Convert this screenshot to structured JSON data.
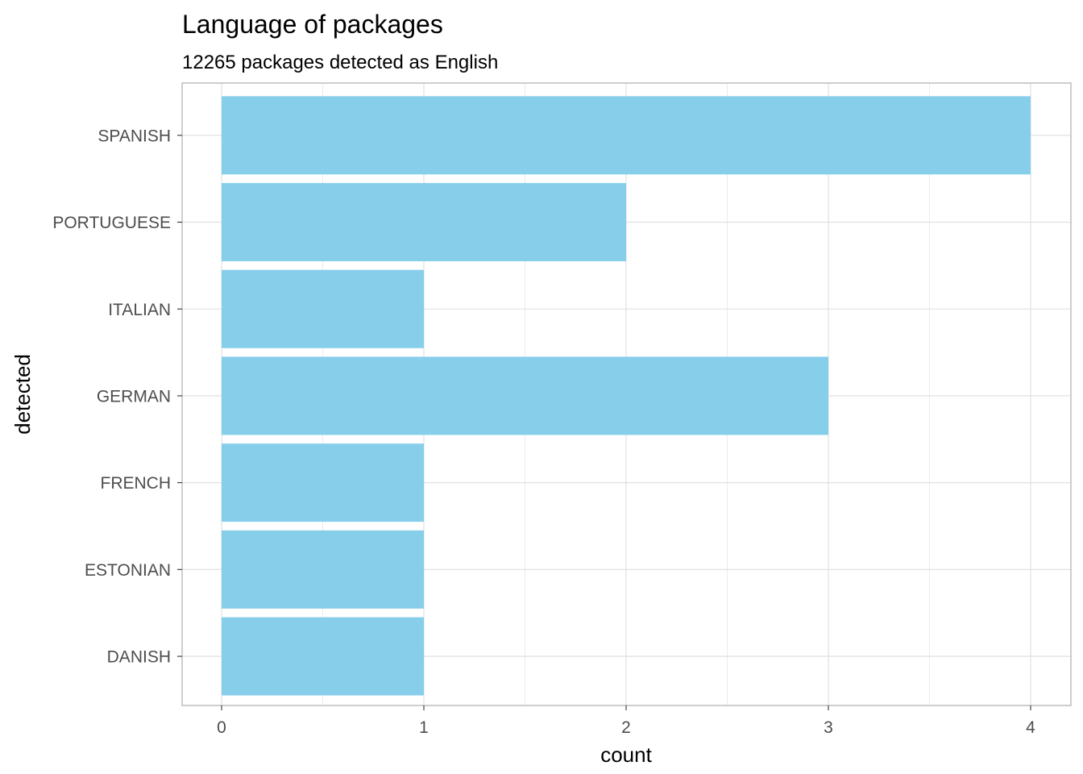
{
  "chart_data": {
    "type": "bar",
    "orientation": "horizontal",
    "title": "Language of packages",
    "subtitle": "12265 packages detected as English",
    "xlabel": "count",
    "ylabel": "detected",
    "categories": [
      "SPANISH",
      "PORTUGUESE",
      "ITALIAN",
      "GERMAN",
      "FRENCH",
      "ESTONIAN",
      "DANISH"
    ],
    "values": [
      4,
      2,
      1,
      3,
      1,
      1,
      1
    ],
    "xlim": [
      0,
      4
    ],
    "xticks": [
      "0",
      "1",
      "2",
      "3",
      "4"
    ],
    "grid": true,
    "bar_color": "#87CEEB",
    "grid_color": "#dedede",
    "panel_border_color": "#b3b3b3"
  }
}
